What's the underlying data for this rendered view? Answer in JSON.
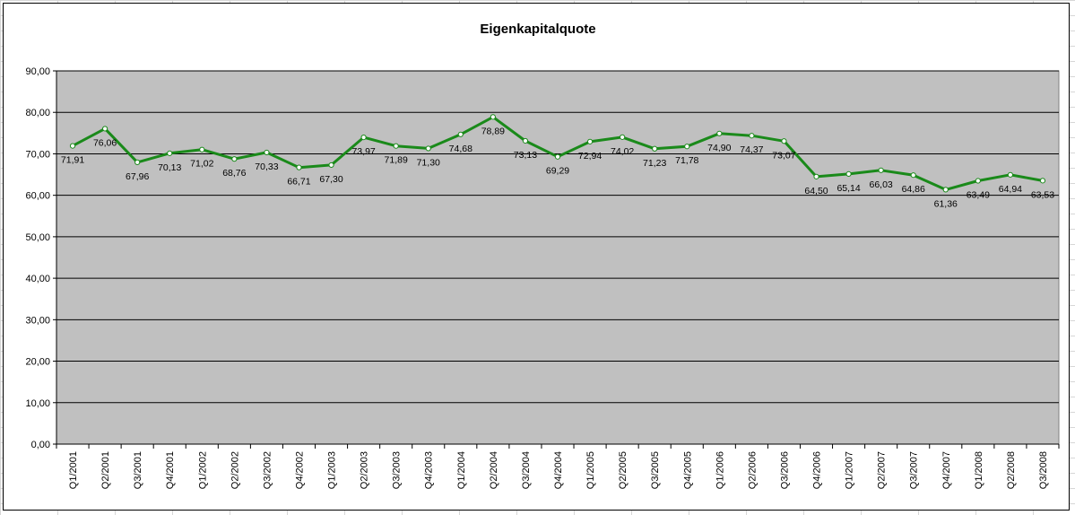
{
  "chart_data": {
    "type": "line",
    "title": "Eigenkapitalquote",
    "xlabel": "",
    "ylabel": "",
    "ylim": [
      0,
      90
    ],
    "yticks": [
      "0,00",
      "10,00",
      "20,00",
      "30,00",
      "40,00",
      "50,00",
      "60,00",
      "70,00",
      "80,00",
      "90,00"
    ],
    "grid": "horizontal",
    "legend": "none",
    "colors": {
      "line": "#1a8a1a",
      "marker_fill": "#ffffff",
      "plot_bg": "#c0c0c0"
    },
    "categories": [
      "Q1/2001",
      "Q2/2001",
      "Q3/2001",
      "Q4/2001",
      "Q1/2002",
      "Q2/2002",
      "Q3/2002",
      "Q4/2002",
      "Q1/2003",
      "Q2/2003",
      "Q3/2003",
      "Q4/2003",
      "Q1/2004",
      "Q2/2004",
      "Q3/2004",
      "Q4/2004",
      "Q1/2005",
      "Q2/2005",
      "Q3/2005",
      "Q4/2005",
      "Q1/2006",
      "Q2/2006",
      "Q3/2006",
      "Q4/2006",
      "Q1/2007",
      "Q2/2007",
      "Q3/2007",
      "Q4/2007",
      "Q1/2008",
      "Q2/2008",
      "Q3/2008"
    ],
    "values": [
      71.91,
      76.06,
      67.96,
      70.13,
      71.02,
      68.76,
      70.33,
      66.71,
      67.3,
      73.97,
      71.89,
      71.3,
      74.68,
      78.89,
      73.13,
      69.29,
      72.94,
      74.02,
      71.23,
      71.78,
      74.9,
      74.37,
      73.07,
      64.5,
      65.14,
      66.03,
      64.86,
      61.36,
      63.49,
      64.94,
      63.53
    ],
    "data_labels": [
      "71,91",
      "76,06",
      "67,96",
      "70,13",
      "71,02",
      "68,76",
      "70,33",
      "66,71",
      "67,30",
      "73,97",
      "71,89",
      "71,30",
      "74,68",
      "78,89",
      "73,13",
      "69,29",
      "72,94",
      "74,02",
      "71,23",
      "71,78",
      "74,90",
      "74,37",
      "73,07",
      "64,50",
      "65,14",
      "66,03",
      "64,86",
      "61,36",
      "63,49",
      "64,94",
      "63,53"
    ]
  }
}
